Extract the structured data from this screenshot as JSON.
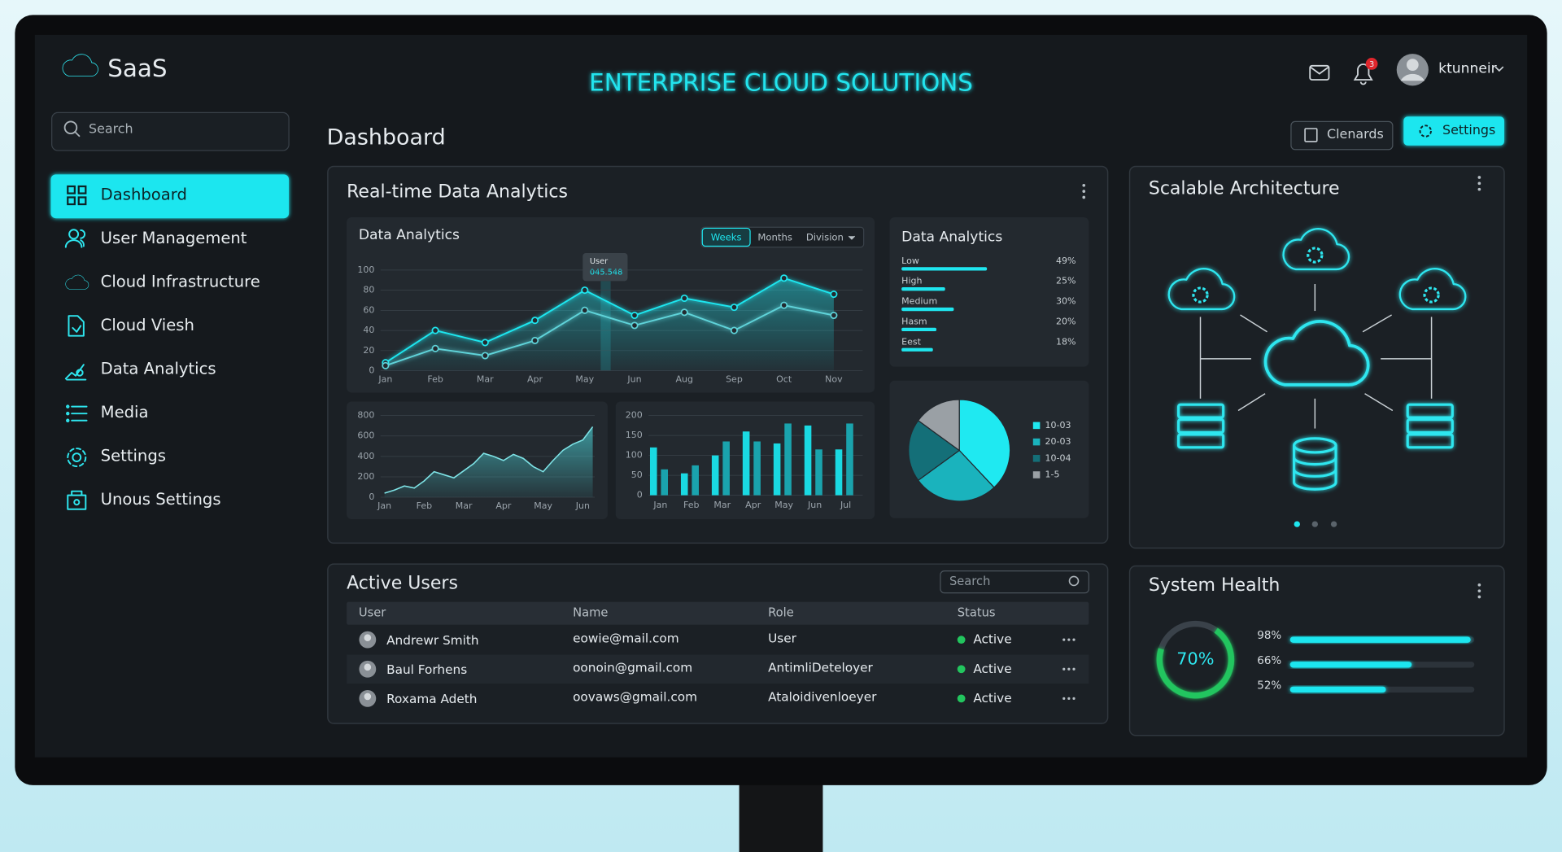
{
  "header": {
    "brand": "SaaS",
    "title": "ENTERPRISE CLOUD SOLUTIONS",
    "notifications": 3,
    "user": "ktunneir"
  },
  "sidebar": {
    "search": "Search",
    "nav": [
      "Dashboard",
      "User Management",
      "Cloud Infrastructure",
      "Cloud Viesh",
      "Data Analytics",
      "Media",
      "Settings",
      "Unous Settings"
    ]
  },
  "main": {
    "title": "Dashboard",
    "buttons": [
      "Clenards",
      "Settings"
    ]
  },
  "analytics": {
    "title": "Real-time Data Analytics",
    "line_chart": {
      "type": "line",
      "title": "Data Analytics",
      "tabs": [
        "Weeks",
        "Months",
        "Division"
      ],
      "tooltip": {
        "label": "User",
        "value": "045.548"
      },
      "categories": [
        "Jan",
        "Feb",
        "Mar",
        "Apr",
        "May",
        "Jun",
        "Aug",
        "Sep",
        "Oct",
        "Nov"
      ],
      "ylim": [
        0,
        100
      ],
      "yticks": [
        0,
        20,
        40,
        60,
        80,
        100
      ],
      "grid": true,
      "series": [
        {
          "color": "#1fe6ef",
          "values": [
            8,
            40,
            28,
            50,
            80,
            55,
            72,
            63,
            92,
            76
          ]
        },
        {
          "color": "#5fd3d9",
          "values": [
            5,
            22,
            15,
            30,
            60,
            45,
            58,
            40,
            65,
            55
          ]
        }
      ]
    },
    "area_chart": {
      "type": "area",
      "color": "#47c3c8",
      "x": [
        0,
        0.25,
        0.5,
        0.75,
        1,
        1.25,
        1.5,
        1.75,
        2,
        2.25,
        2.5,
        2.75,
        3,
        3.25,
        3.5,
        3.75,
        4,
        4.25,
        4.5,
        4.75,
        5,
        5.25
      ],
      "values": [
        40,
        70,
        110,
        90,
        160,
        250,
        220,
        190,
        260,
        330,
        430,
        400,
        360,
        420,
        380,
        300,
        250,
        360,
        460,
        520,
        560,
        690
      ],
      "xlim": [
        -0.1,
        5.3
      ],
      "xticks": [
        {
          "value": 0,
          "label": "Jan"
        },
        {
          "value": 1,
          "label": "Feb"
        },
        {
          "value": 2,
          "label": "Mar"
        },
        {
          "value": 3,
          "label": "Apr"
        },
        {
          "value": 4,
          "label": "May"
        },
        {
          "value": 5,
          "label": "Jun"
        }
      ],
      "ylim": [
        0,
        800
      ],
      "yticks": [
        0,
        200,
        400,
        600,
        800
      ],
      "grid": true
    },
    "bar_chart": {
      "type": "bar",
      "categories": [
        "Jan",
        "Feb",
        "Mar",
        "Apr",
        "May",
        "Jun",
        "Jul"
      ],
      "ylim": [
        0,
        200
      ],
      "yticks": [
        0,
        50,
        100,
        150,
        200
      ],
      "grid": true,
      "series": [
        {
          "color": "#1ad9e2",
          "values": [
            120,
            55,
            100,
            160,
            130,
            175,
            115
          ]
        },
        {
          "color": "#1aa3ad",
          "values": [
            65,
            75,
            135,
            135,
            180,
            115,
            180
          ]
        }
      ]
    },
    "progress": {
      "title": "Data Analytics",
      "categories": [
        "Low",
        "High",
        "Medium",
        "Hasm",
        "Eest"
      ],
      "values": [
        49,
        25,
        30,
        20,
        18
      ],
      "value_labels": [
        "49%",
        "25%",
        "30%",
        "20%",
        "18%"
      ],
      "color": "#1fe6ef"
    },
    "pie": {
      "type": "pie",
      "categories": [
        "10-03",
        "20-03",
        "10-04",
        "1-5"
      ],
      "values": [
        38,
        27,
        20,
        15
      ],
      "colors": [
        "#1fe9f1",
        "#1ab3bd",
        "#146f78",
        "#9aa0a5"
      ]
    }
  },
  "architecture": {
    "title": "Scalable Architecture"
  },
  "users": {
    "title": "Active Users",
    "search": "Search",
    "columns": [
      "User",
      "Name",
      "Role",
      "Status"
    ],
    "rows": [
      [
        "Andrewr Smith",
        "eowie@mail.com",
        "User",
        "Active"
      ],
      [
        "Baul Forhens",
        "oonoin@gmail.com",
        "AntimliDeteloyer",
        "Active"
      ],
      [
        "Roxama Adeth",
        "oovaws@gmail.com",
        "Ataloidivenloeyer",
        "Active"
      ]
    ]
  },
  "health": {
    "title": "System Health",
    "gauge": {
      "value": 70,
      "label": "70%"
    },
    "values": [
      98,
      66,
      52
    ],
    "value_labels": [
      "98%",
      "66%",
      "52%"
    ]
  }
}
